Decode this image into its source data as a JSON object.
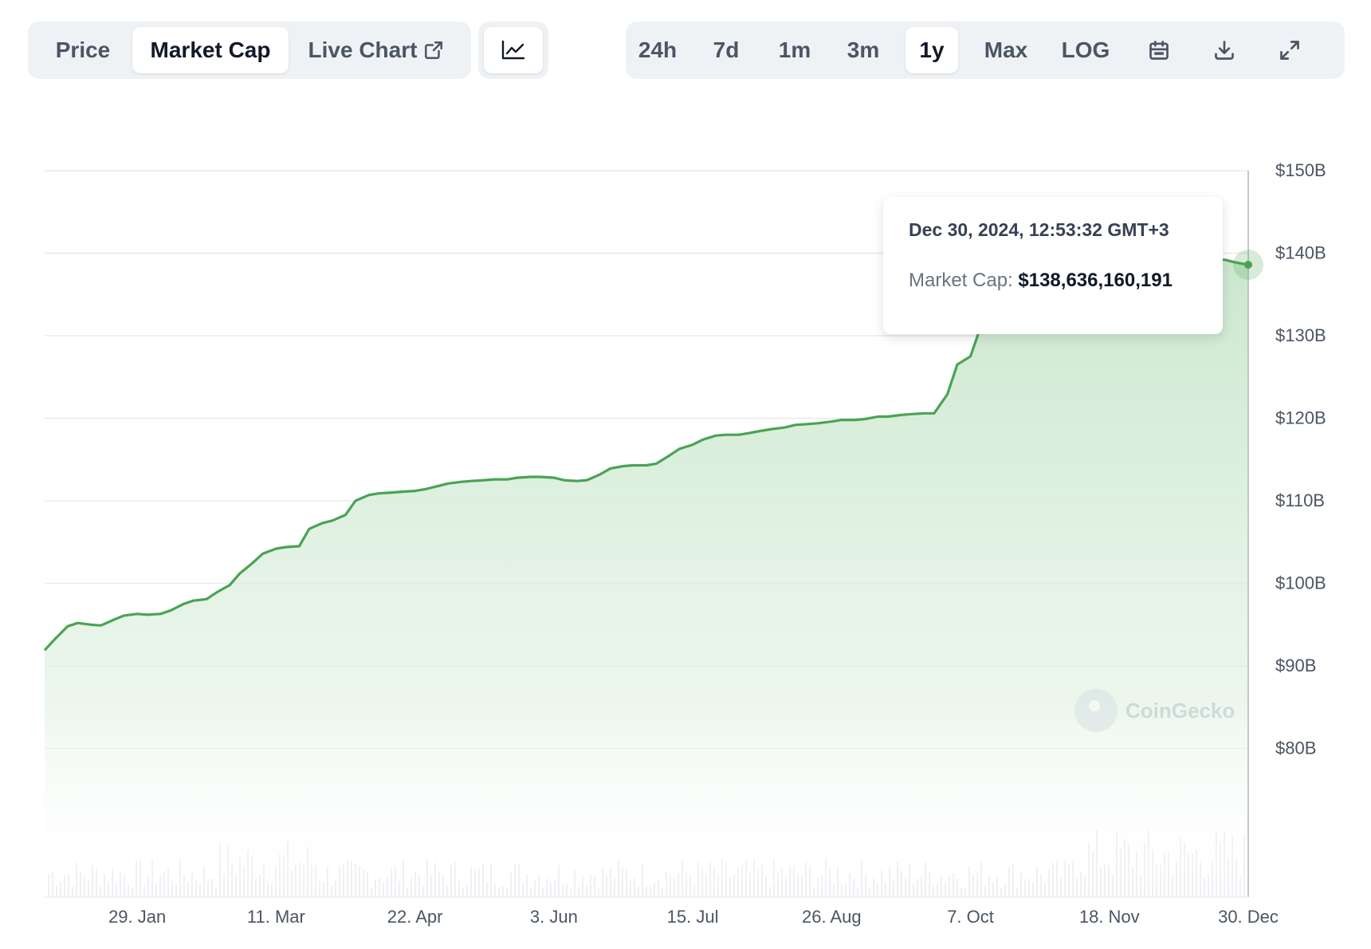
{
  "toolbar": {
    "tabs_left": [
      "Price",
      "Market Cap",
      "Live Chart"
    ],
    "active_left": "Market Cap",
    "ranges": [
      "24h",
      "7d",
      "1m",
      "3m",
      "1y",
      "Max",
      "LOG"
    ],
    "active_range": "1y",
    "icons": [
      "external-link-icon",
      "line-chart-icon",
      "calendar-icon",
      "download-icon",
      "expand-icon"
    ]
  },
  "tooltip": {
    "date": "Dec 30, 2024, 12:53:32 GMT+3",
    "label": "Market Cap:",
    "value": "$138,636,160,191"
  },
  "watermark": "CoinGecko",
  "colors": {
    "line": "#4aa354",
    "fill": "#d5edd7",
    "grid": "#e5e7eb",
    "active_tab": "#ffffff",
    "toolbar_bg": "#eff2f5"
  },
  "chart_data": {
    "type": "area",
    "ylim": [
      62,
      150
    ],
    "yticks": [
      150,
      140,
      130,
      120,
      110,
      100,
      90,
      80
    ],
    "ytick_labels": [
      "$150B",
      "$140B",
      "$130B",
      "$120B",
      "$110B",
      "$100B",
      "$90B",
      "$80B"
    ],
    "xtick_labels": [
      "29. Jan",
      "11. Mar",
      "22. Apr",
      "3. Jun",
      "15. Jul",
      "26. Aug",
      "7. Oct",
      "18. Nov",
      "30. Dec"
    ],
    "xlim": [
      "2024-01-01",
      "2024-12-30"
    ],
    "grid": true,
    "series": [
      {
        "x": [
          "2024-01-01",
          "2024-01-04",
          "2024-01-08",
          "2024-01-11",
          "2024-01-15",
          "2024-01-18",
          "2024-01-22",
          "2024-01-25",
          "2024-01-29",
          "2024-02-01",
          "2024-02-05",
          "2024-02-08",
          "2024-02-12",
          "2024-02-15",
          "2024-02-19",
          "2024-02-22",
          "2024-02-26",
          "2024-02-29",
          "2024-03-04",
          "2024-03-07",
          "2024-03-11",
          "2024-03-14",
          "2024-03-18",
          "2024-03-21",
          "2024-03-25",
          "2024-03-28",
          "2024-04-01",
          "2024-04-04",
          "2024-04-08",
          "2024-04-11",
          "2024-04-15",
          "2024-04-18",
          "2024-04-22",
          "2024-04-25",
          "2024-04-29",
          "2024-05-02",
          "2024-05-06",
          "2024-05-09",
          "2024-05-13",
          "2024-05-16",
          "2024-05-20",
          "2024-05-23",
          "2024-05-27",
          "2024-05-30",
          "2024-06-03",
          "2024-06-06",
          "2024-06-10",
          "2024-06-13",
          "2024-06-17",
          "2024-06-20",
          "2024-06-24",
          "2024-06-27",
          "2024-07-01",
          "2024-07-04",
          "2024-07-08",
          "2024-07-11",
          "2024-07-15",
          "2024-07-18",
          "2024-07-22",
          "2024-07-25",
          "2024-07-29",
          "2024-08-01",
          "2024-08-05",
          "2024-08-08",
          "2024-08-12",
          "2024-08-15",
          "2024-08-19",
          "2024-08-22",
          "2024-08-26",
          "2024-08-29",
          "2024-09-02",
          "2024-09-05",
          "2024-09-09",
          "2024-09-12",
          "2024-09-16",
          "2024-09-19",
          "2024-09-23",
          "2024-09-26",
          "2024-09-30",
          "2024-10-03",
          "2024-10-07",
          "2024-10-10",
          "2024-10-14",
          "2024-10-17",
          "2024-10-21",
          "2024-10-24",
          "2024-10-28",
          "2024-10-31",
          "2024-11-04",
          "2024-11-07",
          "2024-11-11",
          "2024-11-14",
          "2024-11-18",
          "2024-11-21",
          "2024-11-25",
          "2024-11-28",
          "2024-12-02",
          "2024-12-05",
          "2024-12-09",
          "2024-12-12",
          "2024-12-16",
          "2024-12-19",
          "2024-12-23",
          "2024-12-26",
          "2024-12-30"
        ],
        "values": [
          91.9,
          93.2,
          94.8,
          95.2,
          95.0,
          94.9,
          95.6,
          96.1,
          96.3,
          96.2,
          96.3,
          96.7,
          97.5,
          97.9,
          98.1,
          98.9,
          99.8,
          101.2,
          102.5,
          103.6,
          104.2,
          104.4,
          104.5,
          106.6,
          107.3,
          107.6,
          108.3,
          110.0,
          110.7,
          110.9,
          111.0,
          111.1,
          111.2,
          111.4,
          111.8,
          112.1,
          112.3,
          112.4,
          112.5,
          112.6,
          112.6,
          112.8,
          112.9,
          112.9,
          112.8,
          112.5,
          112.4,
          112.5,
          113.2,
          113.9,
          114.2,
          114.3,
          114.3,
          114.5,
          115.5,
          116.3,
          116.8,
          117.4,
          117.9,
          118.0,
          118.0,
          118.2,
          118.5,
          118.7,
          118.9,
          119.2,
          119.3,
          119.4,
          119.6,
          119.8,
          119.8,
          119.9,
          120.2,
          120.2,
          120.4,
          120.5,
          120.6,
          120.6,
          122.9,
          126.5,
          127.5,
          131.0,
          134.5,
          136.5,
          137.5,
          138.5,
          139.2,
          139.4,
          139.2,
          139.0,
          139.3,
          139.6,
          139.4,
          139.5,
          139.3,
          139.5,
          139.4,
          139.2,
          139.3,
          139.4,
          139.2,
          139.3,
          139.2,
          138.9,
          138.6
        ]
      }
    ]
  }
}
